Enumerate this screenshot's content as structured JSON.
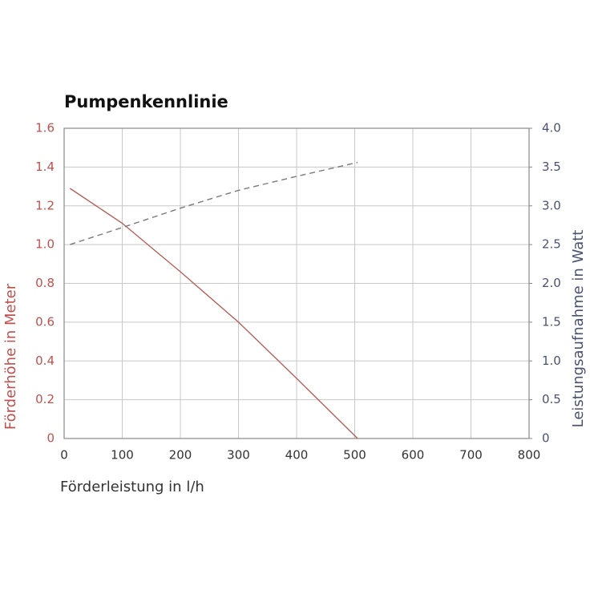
{
  "chart_data": {
    "type": "line",
    "title": "Pumpenkennlinie",
    "x_label": "Förderleistung in l/h",
    "y_label": "Förderhöhe in Meter",
    "y2_label": "Leistungsaufnahme in Watt",
    "x": [
      10,
      100,
      200,
      300,
      400,
      505
    ],
    "series": [
      {
        "name": "Förderhöhe",
        "color": "#b5605a",
        "values": [
          1.29,
          1.11,
          0.86,
          0.6,
          0.31,
          0
        ],
        "axis": "y",
        "dashed": false
      },
      {
        "name": "Leistungsaufnahme",
        "color": "#7a7a7a",
        "values": [
          2.5,
          2.72,
          2.97,
          3.2,
          3.38,
          3.56
        ],
        "axis": "y2",
        "dashed": true
      }
    ],
    "xlim": [
      0,
      800
    ],
    "xticks": [
      0,
      100,
      200,
      300,
      400,
      500,
      600,
      700,
      800
    ],
    "ylim": [
      0,
      1.6
    ],
    "yticks": [
      0,
      0.2,
      0.4,
      0.6,
      0.8,
      {
        "value": 1,
        "label": "1.0"
      },
      1.2,
      1.4,
      1.6
    ],
    "y2lim": [
      0,
      4
    ],
    "y2ticks": [
      0,
      0.5,
      {
        "value": 1,
        "label": "1.0"
      },
      1.5,
      {
        "value": 2,
        "label": "2.0"
      },
      2.5,
      {
        "value": 3,
        "label": "3.0"
      },
      3.5,
      {
        "value": 4,
        "label": "4.0"
      }
    ],
    "grid": true,
    "y_color": "#c0504d",
    "y2_color": "#4a5270"
  }
}
